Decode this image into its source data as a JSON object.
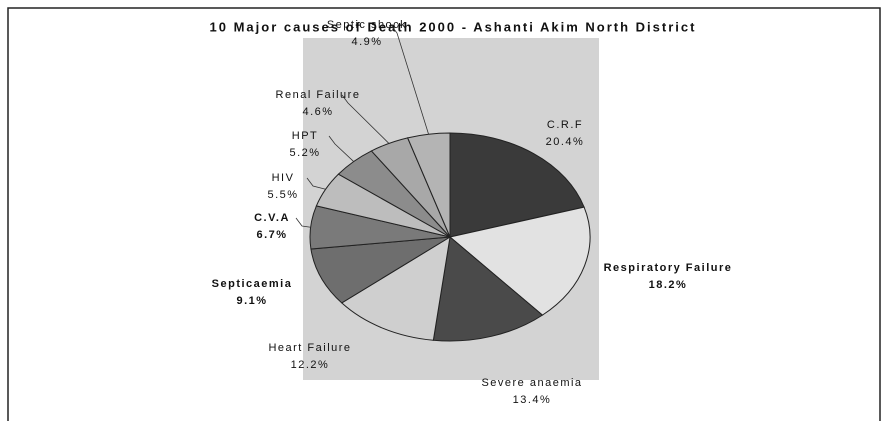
{
  "chart_data": {
    "type": "pie",
    "title": "10 Major causes of Death 2000 - Ashanti Akim North District",
    "categories": [
      "C.R.F",
      "Respiratory Failure",
      "Severe anaemia",
      "Heart Failure",
      "Septicaemia",
      "C.V.A",
      "HIV",
      "HPT",
      "Renal Failure",
      "Septic shock"
    ],
    "values": [
      20.4,
      18.2,
      13.4,
      12.2,
      9.1,
      6.7,
      5.5,
      5.2,
      4.6,
      4.9
    ],
    "value_labels": [
      "20.4%",
      "18.2%",
      "13.4%",
      "12.2%",
      "9.1%",
      "6.7%",
      "5.5%",
      "5.2%",
      "4.6%",
      "4.9%"
    ],
    "colors": [
      "#3a3a3a",
      "#e2e2e2",
      "#4a4a4a",
      "#cfcfcf",
      "#6e6e6e",
      "#7a7a7a",
      "#bdbdbd",
      "#8c8c8c",
      "#a8a8a8",
      "#b4b4b4"
    ]
  }
}
